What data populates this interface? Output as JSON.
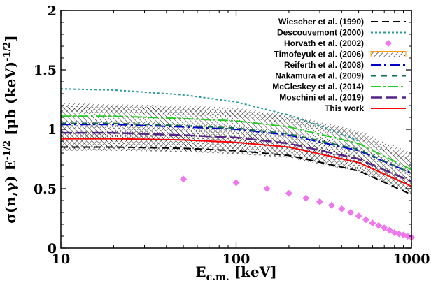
{
  "chart_data": {
    "type": "line",
    "x_scale": "log",
    "xlim": [
      10,
      1000
    ],
    "ylim": [
      0,
      2
    ],
    "grid": false,
    "legend_position": "top-right",
    "x_ticks": [
      10,
      100,
      1000
    ],
    "x_tick_labels": [
      "10",
      "100",
      "1000"
    ],
    "y_ticks": [
      0,
      0.5,
      1,
      1.5,
      2
    ],
    "y_tick_labels": [
      "0",
      "0.5",
      "1",
      "1.5",
      "2"
    ],
    "xlabel": {
      "main": "E",
      "sub": "c.m.",
      "rest": " [keV]"
    },
    "ylabel": {
      "text": "σ(n,γ) E",
      "exp1": "-1/2",
      "mid": " [μb (keV)",
      "exp2": "-1/2",
      "end": "]"
    },
    "bands": [
      {
        "name": "Timofeyuk et al. (2006)",
        "color": "#ff9a1a",
        "pattern": "diag-right",
        "x": [
          10,
          20,
          50,
          100,
          200,
          500,
          1000
        ],
        "lower": [
          1.14,
          1.14,
          1.12,
          1.1,
          1.05,
          0.91,
          0.71
        ],
        "upper": [
          1.22,
          1.21,
          1.2,
          1.18,
          1.12,
          0.99,
          0.8
        ]
      },
      {
        "name": "McCleskey et al. (2014)",
        "color": "#22cc22",
        "pattern": "diag-left",
        "x": [
          10,
          20,
          50,
          100,
          200,
          500,
          1000
        ],
        "lower": [
          1.0,
          1.0,
          0.98,
          0.96,
          0.92,
          0.79,
          0.59
        ],
        "upper": [
          1.2,
          1.2,
          1.18,
          1.16,
          1.11,
          0.97,
          0.74
        ]
      },
      {
        "name": "Reiferth et al. (2008)",
        "color": "#4a7fc4",
        "pattern": "diag-right",
        "x": [
          10,
          20,
          50,
          100,
          200,
          500,
          1000
        ],
        "lower": [
          1.0,
          1.0,
          0.98,
          0.96,
          0.92,
          0.79,
          0.6
        ],
        "upper": [
          1.07,
          1.07,
          1.05,
          1.03,
          0.98,
          0.85,
          0.66
        ]
      },
      {
        "name": "Moschini et al. (2019)",
        "color": "#888888",
        "pattern": "diag-left",
        "x": [
          10,
          20,
          50,
          100,
          200,
          500,
          1000
        ],
        "lower": [
          0.92,
          0.92,
          0.9,
          0.88,
          0.84,
          0.71,
          0.52
        ],
        "upper": [
          1.0,
          1.0,
          0.99,
          0.97,
          0.92,
          0.79,
          0.6
        ]
      },
      {
        "name": "This work",
        "color": "#ff2222",
        "pattern": "cross",
        "x": [
          10,
          20,
          50,
          100,
          200,
          500,
          1000
        ],
        "lower": [
          0.82,
          0.82,
          0.81,
          0.79,
          0.76,
          0.64,
          0.45
        ],
        "upper": [
          0.99,
          0.99,
          0.97,
          0.95,
          0.91,
          0.78,
          0.58
        ]
      }
    ],
    "series": [
      {
        "name": "Wiescher et al. (1990)",
        "color": "#000000",
        "dash": "10,6",
        "width": 2,
        "x": [
          10,
          20,
          50,
          100,
          200,
          500,
          1000
        ],
        "y": [
          0.85,
          0.85,
          0.84,
          0.82,
          0.78,
          0.65,
          0.45
        ]
      },
      {
        "name": "Descouvemont (2000)",
        "color": "#2a9a9a",
        "dash": "3,3",
        "width": 2,
        "x": [
          10,
          20,
          50,
          100,
          200,
          300,
          400,
          500
        ],
        "y": [
          1.34,
          1.33,
          1.29,
          1.23,
          1.12,
          1.03,
          0.96,
          0.9
        ]
      },
      {
        "name": "Horvath et al. (2002)",
        "color": "#ee77ee",
        "marker": "diamond",
        "x": [
          50,
          100,
          150,
          200,
          250,
          300,
          350,
          400,
          450,
          500,
          550,
          600,
          650,
          700,
          750,
          800,
          850,
          900,
          950,
          1000
        ],
        "y": [
          0.58,
          0.55,
          0.5,
          0.46,
          0.42,
          0.39,
          0.36,
          0.33,
          0.3,
          0.27,
          0.24,
          0.21,
          0.19,
          0.17,
          0.15,
          0.13,
          0.12,
          0.11,
          0.1,
          0.09
        ]
      },
      {
        "name": "Timofeyuk et al. (2006)",
        "color": "#ff9a1a",
        "legend_box": true
      },
      {
        "name": "Reiferth et al. (2008)",
        "color": "#0000cc",
        "dash": "14,5,3,5",
        "width": 2,
        "x": [
          10,
          20,
          50,
          100,
          200,
          500,
          1000
        ],
        "y": [
          1.04,
          1.04,
          1.02,
          1.0,
          0.95,
          0.82,
          0.63
        ]
      },
      {
        "name": "Nakamura et al. (2009)",
        "color": "#0c6b52",
        "dash": "8,7",
        "width": 2,
        "x": [
          10,
          20,
          50,
          100,
          200,
          500,
          1000
        ],
        "y": [
          1.05,
          1.05,
          1.03,
          1.01,
          0.96,
          0.83,
          0.63
        ]
      },
      {
        "name": "McCleskey et al. (2014)",
        "color": "#22cc22",
        "dash": "14,4,3,4",
        "width": 2,
        "x": [
          10,
          20,
          50,
          100,
          200,
          500,
          1000
        ],
        "y": [
          1.11,
          1.11,
          1.09,
          1.07,
          1.02,
          0.88,
          0.66
        ]
      },
      {
        "name": "Moschini et al. (2019)",
        "color": "#552288",
        "dash": "16,6",
        "width": 2.5,
        "x": [
          10,
          20,
          50,
          100,
          200,
          500,
          1000
        ],
        "y": [
          0.97,
          0.97,
          0.95,
          0.93,
          0.88,
          0.75,
          0.56
        ]
      },
      {
        "name": "This work",
        "color": "#ff0000",
        "width": 2,
        "x": [
          10,
          20,
          50,
          100,
          200,
          500,
          1000
        ],
        "y": [
          0.92,
          0.92,
          0.91,
          0.89,
          0.85,
          0.72,
          0.52
        ]
      }
    ]
  }
}
